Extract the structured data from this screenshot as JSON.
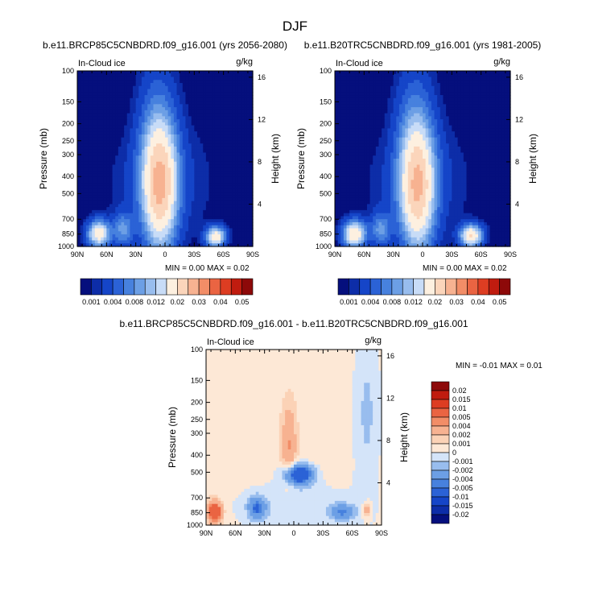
{
  "title": "DJF",
  "chart_data": [
    {
      "type": "heatmap",
      "id": "future",
      "title": "b.e11.BRCP85C5CNBDRD.f09_g16.001 (yrs 2056-2080)",
      "field": "In-Cloud ice",
      "units": "g/kg",
      "x_ticks": [
        "90N",
        "60N",
        "30N",
        "0",
        "30S",
        "60S",
        "90S"
      ],
      "xlim": [
        90,
        -90
      ],
      "y_ticks": [
        100,
        150,
        200,
        250,
        300,
        400,
        500,
        700,
        850,
        1000
      ],
      "ylim": [
        1000,
        100
      ],
      "ylabel": "Pressure (mb)",
      "y2_ticks": [
        16,
        12,
        8,
        4
      ],
      "y2label": "Height (km)",
      "min_label": "MIN = ",
      "min_value": "0.00",
      "max_label": "MAX = ",
      "max_value": "0.02",
      "blobs": [
        {
          "lat": 5,
          "p": 460,
          "sx": 12,
          "sy": 0.55,
          "amp": 0.022
        },
        {
          "lat": 8,
          "p": 250,
          "sx": 14,
          "sy": 0.7,
          "amp": 0.006
        },
        {
          "lat": 68,
          "p": 845,
          "sx": 8,
          "sy": 0.12,
          "amp": 0.018
        },
        {
          "lat": 43,
          "p": 800,
          "sx": 7,
          "sy": 0.15,
          "amp": 0.008
        },
        {
          "lat": -52,
          "p": 880,
          "sx": 7,
          "sy": 0.09,
          "amp": 0.018
        },
        {
          "lat": 25,
          "p": 450,
          "sx": 25,
          "sy": 0.5,
          "amp": 0.002
        },
        {
          "lat": -25,
          "p": 420,
          "sx": 22,
          "sy": 0.55,
          "amp": 0.0015
        }
      ]
    },
    {
      "type": "heatmap",
      "id": "present",
      "title": "b.e11.B20TRC5CNBDRD.f09_g16.001 (yrs 1981-2005)",
      "field": "In-Cloud ice",
      "units": "g/kg",
      "x_ticks": [
        "90N",
        "60N",
        "30N",
        "0",
        "30S",
        "60S",
        "90S"
      ],
      "xlim": [
        90,
        -90
      ],
      "y_ticks": [
        100,
        150,
        200,
        250,
        300,
        400,
        500,
        700,
        850,
        1000
      ],
      "ylim": [
        1000,
        100
      ],
      "ylabel": "Pressure (mb)",
      "y2_ticks": [
        16,
        12,
        8,
        4
      ],
      "y2label": "Height (km)",
      "min_label": "MIN = ",
      "min_value": "0.00",
      "max_label": "MAX = ",
      "max_value": "0.02",
      "blobs": [
        {
          "lat": 5,
          "p": 470,
          "sx": 12,
          "sy": 0.55,
          "amp": 0.021
        },
        {
          "lat": 8,
          "p": 250,
          "sx": 14,
          "sy": 0.7,
          "amp": 0.006
        },
        {
          "lat": 70,
          "p": 850,
          "sx": 8,
          "sy": 0.12,
          "amp": 0.02
        },
        {
          "lat": 43,
          "p": 800,
          "sx": 7,
          "sy": 0.15,
          "amp": 0.008
        },
        {
          "lat": -50,
          "p": 870,
          "sx": 8,
          "sy": 0.1,
          "amp": 0.02
        },
        {
          "lat": 25,
          "p": 450,
          "sx": 25,
          "sy": 0.5,
          "amp": 0.002
        },
        {
          "lat": -25,
          "p": 420,
          "sx": 22,
          "sy": 0.55,
          "amp": 0.0015
        }
      ]
    },
    {
      "type": "heatmap",
      "id": "difference",
      "title": "b.e11.BRCP85C5CNBDRD.f09_g16.001 - b.e11.B20TRC5CNBDRD.f09_g16.001",
      "field": "In-Cloud ice",
      "units": "g/kg",
      "x_ticks": [
        "90N",
        "60N",
        "30N",
        "0",
        "30S",
        "60S",
        "90S"
      ],
      "xlim": [
        90,
        -90
      ],
      "y_ticks": [
        100,
        150,
        200,
        250,
        300,
        400,
        500,
        700,
        850,
        1000
      ],
      "ylim": [
        1000,
        100
      ],
      "ylabel": "Pressure (mb)",
      "y2_ticks": [
        16,
        12,
        8,
        4
      ],
      "y2label": "Height (km)",
      "min_label": "MIN = ",
      "min_value": "-0.01",
      "max_label": "MAX = ",
      "max_value": "0.01",
      "base": 0.0006,
      "blobs": [
        {
          "lat": 0,
          "p": 800,
          "sx": 45,
          "sy": 0.25,
          "amp": -0.0016
        },
        {
          "lat": 5,
          "p": 350,
          "sx": 5,
          "sy": 0.35,
          "amp": 0.0035
        },
        {
          "lat": -5,
          "p": 515,
          "sx": 10,
          "sy": 0.09,
          "amp": -0.009
        },
        {
          "lat": 81,
          "p": 840,
          "sx": 5,
          "sy": 0.1,
          "amp": 0.008
        },
        {
          "lat": 38,
          "p": 800,
          "sx": 6,
          "sy": 0.1,
          "amp": -0.005
        },
        {
          "lat": -50,
          "p": 840,
          "sx": 8,
          "sy": 0.07,
          "amp": -0.0045
        },
        {
          "lat": -75,
          "p": 230,
          "sx": 10,
          "sy": 0.9,
          "amp": -0.0018
        },
        {
          "lat": -75,
          "p": 820,
          "sx": 3,
          "sy": 0.08,
          "amp": 0.003
        }
      ]
    }
  ],
  "colorbar_main": {
    "labels": [
      "0.001",
      "0.004",
      "0.008",
      "0.012",
      "0.02",
      "0.03",
      "0.04",
      "0.05"
    ],
    "levels": [
      0.001,
      0.002,
      0.004,
      0.006,
      0.008,
      0.01,
      0.012,
      0.015,
      0.02,
      0.025,
      0.03,
      0.035,
      0.04,
      0.045,
      0.05
    ],
    "colors": [
      "#050f7d",
      "#0d2da8",
      "#1545c8",
      "#2b62d6",
      "#4781de",
      "#6c9fe5",
      "#98bdee",
      "#c8dcf7",
      "#fdf0e0",
      "#fbd5bb",
      "#f7b291",
      "#f28d67",
      "#ea6442",
      "#dd3d22",
      "#c01c0f",
      "#8d0909"
    ],
    "ticks": [
      1,
      3,
      5,
      7,
      9,
      11,
      13,
      15
    ]
  },
  "colorbar_diff": {
    "labels": [
      "0.02",
      "0.015",
      "0.01",
      "0.005",
      "0.004",
      "0.002",
      "0.001",
      "0",
      "-0.001",
      "-0.002",
      "-0.004",
      "-0.005",
      "-0.01",
      "-0.015",
      "-0.02"
    ],
    "levels": [
      -0.02,
      -0.015,
      -0.01,
      -0.005,
      -0.004,
      -0.002,
      -0.001,
      0,
      0.001,
      0.002,
      0.004,
      0.005,
      0.01,
      0.015,
      0.02
    ],
    "colors": [
      "#050f7d",
      "#0d2da8",
      "#1545c8",
      "#2b62d6",
      "#4781de",
      "#6c9fe5",
      "#98bdee",
      "#d4e4f9",
      "#fde8d6",
      "#fbd2b6",
      "#f7b291",
      "#f28d67",
      "#ea6442",
      "#dd3d22",
      "#c01c0f",
      "#8d0909"
    ]
  }
}
